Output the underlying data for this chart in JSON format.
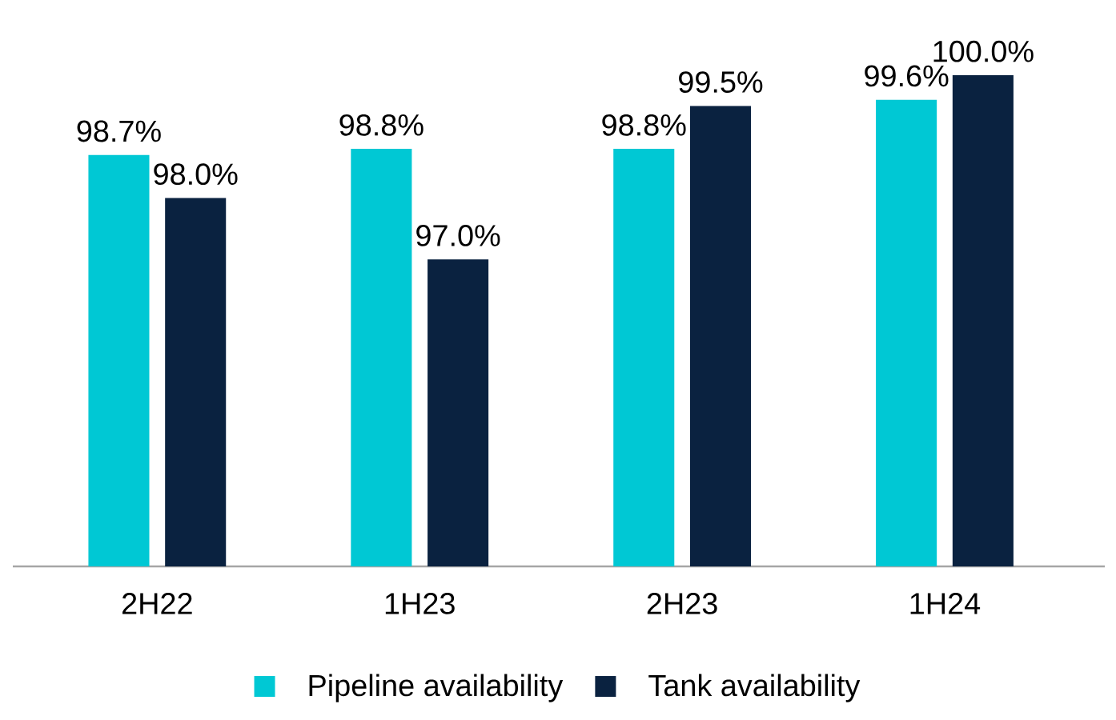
{
  "chart_data": {
    "type": "bar",
    "categories": [
      "2H22",
      "1H23",
      "2H23",
      "1H24"
    ],
    "series": [
      {
        "name": "Pipeline availability",
        "color": "#00c8d4",
        "values": [
          98.7,
          98.8,
          98.8,
          99.6
        ],
        "value_labels": [
          "98.7%",
          "98.8%",
          "98.8%",
          "99.6%"
        ]
      },
      {
        "name": "Tank availability",
        "color": "#0a2240",
        "values": [
          98.0,
          97.0,
          99.5,
          100.0
        ],
        "value_labels": [
          "98.0%",
          "97.0%",
          "99.5%",
          "100.0%"
        ]
      }
    ],
    "ylim": [
      92,
      100
    ],
    "tick_labels": "x",
    "legend": "bottom",
    "grid": false
  }
}
